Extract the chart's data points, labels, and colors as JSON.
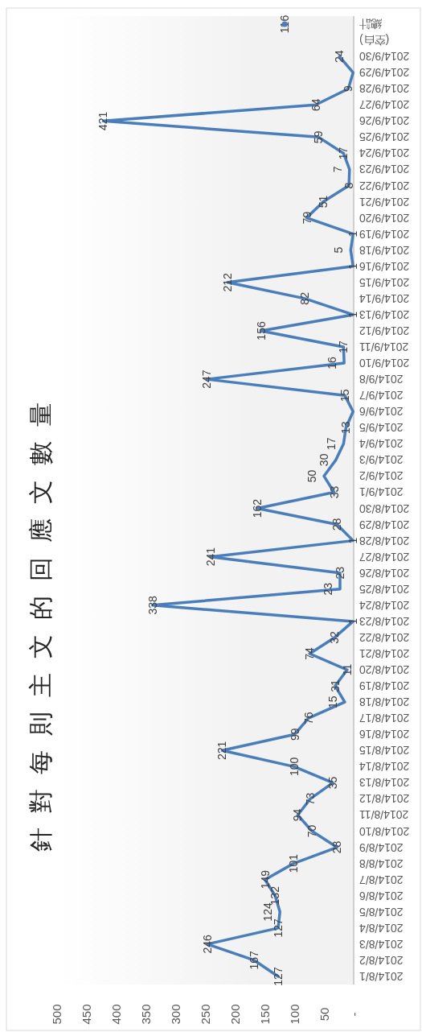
{
  "chart_data": {
    "type": "line",
    "title": "針對每則主文的回應文數量",
    "orientation": "horizontal",
    "categories": [
      "總計",
      "(空白)",
      "2014/9/30",
      "2014/9/29",
      "2014/9/28",
      "2014/9/27",
      "2014/9/26",
      "2014/9/25",
      "2014/9/24",
      "2014/9/23",
      "2014/9/22",
      "2014/9/21",
      "2014/9/20",
      "2014/9/19",
      "2014/9/18",
      "2014/9/16",
      "2014/9/15",
      "2014/9/14",
      "2014/9/13",
      "2014/9/12",
      "2014/9/11",
      "2014/9/10",
      "2014/9/8",
      "2014/9/7",
      "2014/9/6",
      "2014/9/5",
      "2014/9/4",
      "2014/9/3",
      "2014/9/2",
      "2014/9/1",
      "2014/8/30",
      "2014/8/29",
      "2014/8/28",
      "2014/8/27",
      "2014/8/26",
      "2014/8/25",
      "2014/8/24",
      "2014/8/23",
      "2014/8/22",
      "2014/8/21",
      "2014/8/20",
      "2014/8/19",
      "2014/8/18",
      "2014/8/17",
      "2014/8/16",
      "2014/8/15",
      "2014/8/14",
      "2014/8/13",
      "2014/8/12",
      "2014/8/11",
      "2014/8/10",
      "2014/8/9",
      "2014/8/8",
      "2014/8/7",
      "2014/8/6",
      "2014/8/5",
      "2014/8/4",
      "2014/8/3",
      "2014/8/2",
      "2014/8/1"
    ],
    "series": [
      {
        "color": "#4a7ebb",
        "values": [
          116,
          null,
          24,
          1,
          9,
          64,
          421,
          59,
          17,
          7,
          8,
          51,
          79,
          1,
          5,
          1,
          212,
          82,
          1,
          156,
          17,
          16,
          247,
          15,
          1,
          13,
          17,
          30,
          50,
          33,
          162,
          28,
          1,
          241,
          23,
          23,
          338,
          1,
          32,
          74,
          11,
          31,
          15,
          76,
          99,
          221,
          100,
          35,
          73,
          94,
          70,
          28,
          101,
          149,
          132,
          124,
          127,
          246,
          167,
          127
        ],
        "value_labels": [
          "116",
          null,
          "24",
          null,
          "9",
          "64",
          "421",
          "59",
          "17",
          "7",
          "8",
          "51",
          "79",
          "1",
          "5",
          "1",
          "212",
          "82",
          "1",
          "156",
          "17",
          "16",
          "247",
          "15",
          null,
          "13",
          "17",
          "30",
          "50",
          "33",
          "162",
          "28",
          "1",
          "241",
          "23",
          "23",
          "338",
          "1",
          "32",
          "74",
          "11",
          "31",
          "15",
          "76",
          "99",
          "221",
          "100",
          "35",
          "73",
          "94",
          "70",
          "28",
          "101",
          "149",
          "132",
          "124",
          "127",
          "246",
          "167",
          "127"
        ]
      }
    ],
    "xlim": [
      500,
      0
    ],
    "xticks": [
      500,
      450,
      400,
      350,
      300,
      250,
      200,
      150,
      100,
      50,
      {
        "value": 0,
        "label": "-"
      }
    ]
  }
}
